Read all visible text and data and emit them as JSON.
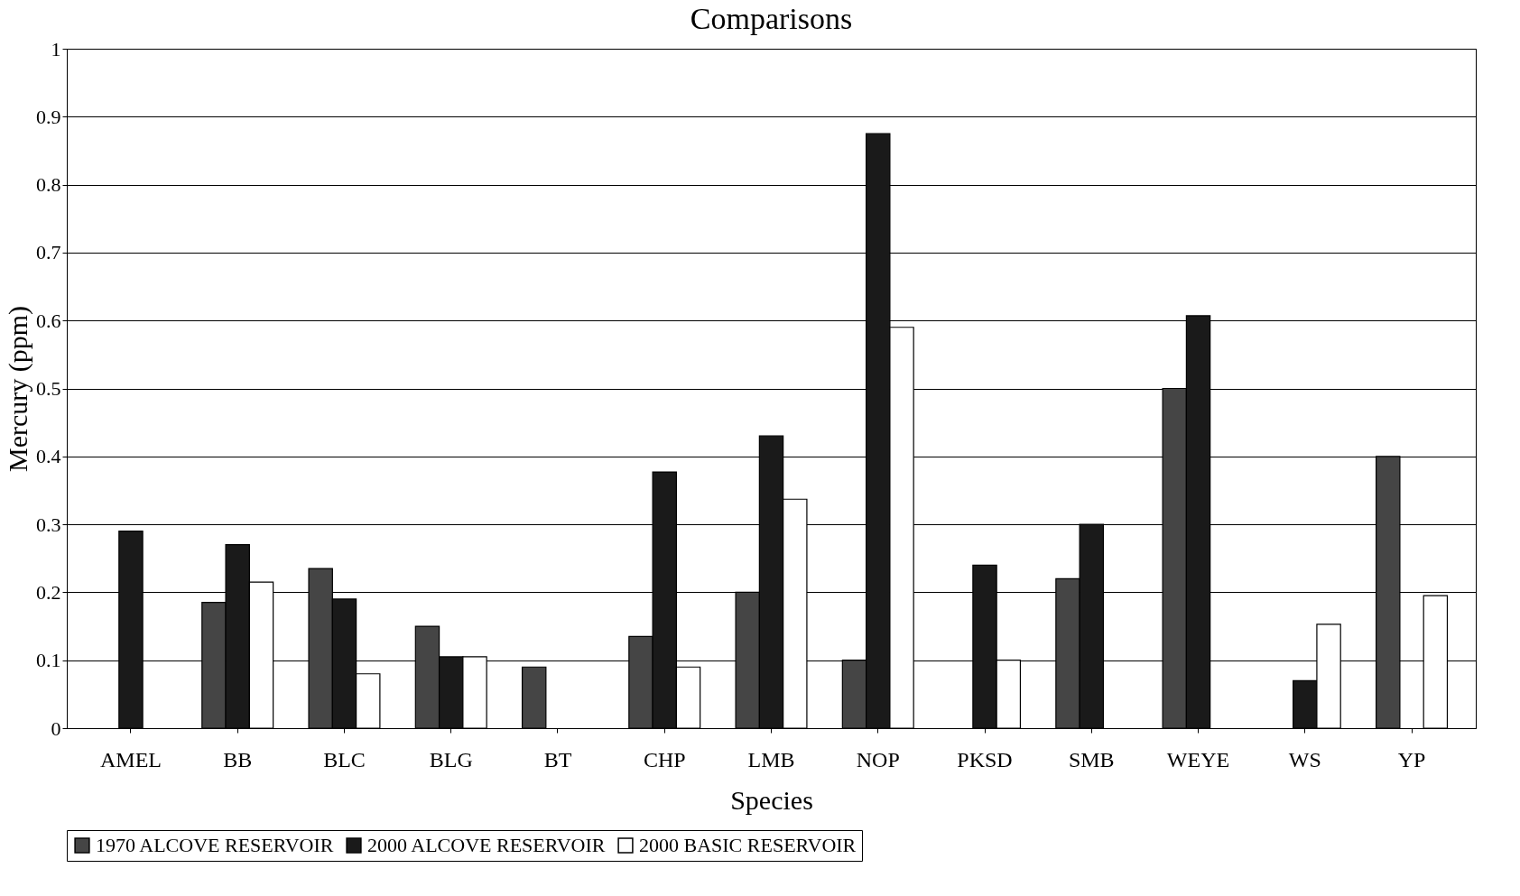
{
  "chart_data": {
    "type": "bar",
    "title": "Comparisons",
    "xlabel": "Species",
    "ylabel": "Mercury (ppm)",
    "categories": [
      "AMEL",
      "BB",
      "BLC",
      "BLG",
      "BT",
      "CHP",
      "LMB",
      "NOP",
      "PKSD",
      "SMB",
      "WEYE",
      "WS",
      "YP"
    ],
    "series": [
      {
        "name": "1970 ALCOVE RESERVOIR",
        "color": "#454545",
        "values": [
          null,
          0.185,
          0.235,
          0.15,
          0.09,
          0.135,
          0.2,
          0.1,
          null,
          0.22,
          0.5,
          null,
          0.4
        ]
      },
      {
        "name": "2000 ALCOVE RESERVOIR",
        "color": "#1a1a1a",
        "values": [
          0.29,
          0.27,
          0.19,
          0.105,
          null,
          0.377,
          0.43,
          0.875,
          0.24,
          0.3,
          0.607,
          0.07,
          null
        ]
      },
      {
        "name": "2000 BASIC RESERVOIR",
        "color": "#ffffff",
        "values": [
          null,
          0.215,
          0.08,
          0.105,
          null,
          0.09,
          0.337,
          0.59,
          0.1,
          null,
          null,
          0.153,
          0.195
        ]
      }
    ],
    "ylim": [
      0,
      1
    ],
    "yticks": [
      0,
      0.1,
      0.2,
      0.3,
      0.4,
      0.5,
      0.6,
      0.7,
      0.8,
      0.9,
      1
    ],
    "grid": "y",
    "legend": "bottom"
  }
}
